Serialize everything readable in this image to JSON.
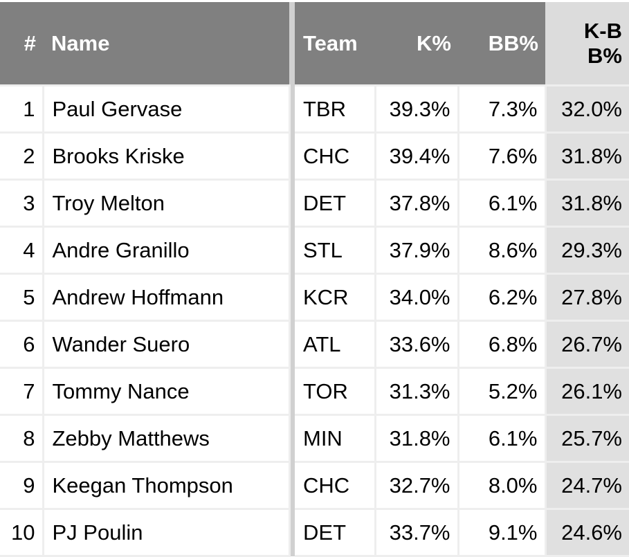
{
  "columns": {
    "rank": "#",
    "name": "Name",
    "team": "Team",
    "k": "K%",
    "bb": "BB%",
    "kbb": "K-BB%"
  },
  "rows": [
    {
      "rank": "1",
      "name": "Paul Gervase",
      "team": "TBR",
      "k": "39.3%",
      "bb": "7.3%",
      "kbb": "32.0%"
    },
    {
      "rank": "2",
      "name": "Brooks Kriske",
      "team": "CHC",
      "k": "39.4%",
      "bb": "7.6%",
      "kbb": "31.8%"
    },
    {
      "rank": "3",
      "name": "Troy Melton",
      "team": "DET",
      "k": "37.8%",
      "bb": "6.1%",
      "kbb": "31.8%"
    },
    {
      "rank": "4",
      "name": "Andre Granillo",
      "team": "STL",
      "k": "37.9%",
      "bb": "8.6%",
      "kbb": "29.3%"
    },
    {
      "rank": "5",
      "name": "Andrew Hoffmann",
      "team": "KCR",
      "k": "34.0%",
      "bb": "6.2%",
      "kbb": "27.8%"
    },
    {
      "rank": "6",
      "name": "Wander Suero",
      "team": "ATL",
      "k": "33.6%",
      "bb": "6.8%",
      "kbb": "26.7%"
    },
    {
      "rank": "7",
      "name": "Tommy Nance",
      "team": "TOR",
      "k": "31.3%",
      "bb": "5.2%",
      "kbb": "26.1%"
    },
    {
      "rank": "8",
      "name": "Zebby Matthews",
      "team": "MIN",
      "k": "31.8%",
      "bb": "6.1%",
      "kbb": "25.7%"
    },
    {
      "rank": "9",
      "name": "Keegan Thompson",
      "team": "CHC",
      "k": "32.7%",
      "bb": "8.0%",
      "kbb": "24.7%"
    },
    {
      "rank": "10",
      "name": "PJ Poulin",
      "team": "DET",
      "k": "33.7%",
      "bb": "9.1%",
      "kbb": "24.6%"
    }
  ]
}
